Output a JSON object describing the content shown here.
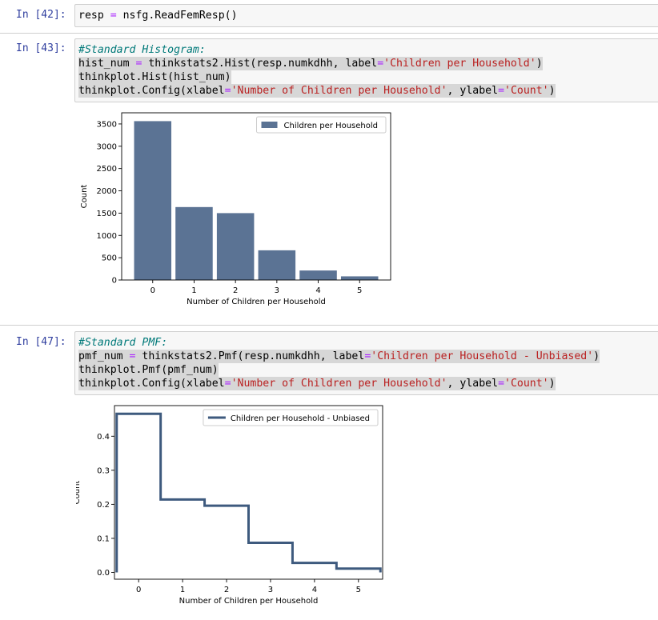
{
  "cells": [
    {
      "prompt": "In [42]:",
      "lines": [
        {
          "parts": [
            {
              "t": "resp ",
              "c": ""
            },
            {
              "t": "=",
              "c": "op"
            },
            {
              "t": " nsfg.ReadFemResp()",
              "c": ""
            }
          ]
        }
      ]
    },
    {
      "prompt": "In [43]:",
      "lines": [
        {
          "parts": [
            {
              "t": "#Standard Histogram:",
              "c": "kw-comment"
            }
          ]
        },
        {
          "parts": [
            {
              "t": "hist_num ",
              "c": ""
            },
            {
              "t": "=",
              "c": "op"
            },
            {
              "t": " thinkstats2.Hist(resp.numkdhh, label",
              "c": ""
            },
            {
              "t": "=",
              "c": "op"
            },
            {
              "t": "'Children per Household'",
              "c": "str"
            },
            {
              "t": ")",
              "c": ""
            }
          ]
        },
        {
          "parts": [
            {
              "t": "thinkplot.Hist(hist_num)",
              "c": ""
            }
          ]
        },
        {
          "parts": [
            {
              "t": "thinkplot.Config(xlabel",
              "c": ""
            },
            {
              "t": "=",
              "c": "op"
            },
            {
              "t": "'Number of Children per Household'",
              "c": "str"
            },
            {
              "t": ", ylabel",
              "c": ""
            },
            {
              "t": "=",
              "c": "op"
            },
            {
              "t": "'Count'",
              "c": "str"
            },
            {
              "t": ")",
              "c": ""
            }
          ]
        }
      ]
    },
    {
      "prompt": "In [47]:",
      "lines": [
        {
          "parts": [
            {
              "t": "#Standard PMF:",
              "c": "kw-comment"
            }
          ]
        },
        {
          "parts": [
            {
              "t": "pmf_num ",
              "c": ""
            },
            {
              "t": "=",
              "c": "op"
            },
            {
              "t": " thinkstats2.Pmf(resp.numkdhh, label",
              "c": ""
            },
            {
              "t": "=",
              "c": "op"
            },
            {
              "t": "'Children per Household - Unbiased'",
              "c": "str"
            },
            {
              "t": ")",
              "c": ""
            }
          ]
        },
        {
          "parts": [
            {
              "t": "thinkplot.Pmf(pmf_num)",
              "c": ""
            }
          ]
        },
        {
          "parts": [
            {
              "t": "thinkplot.Config(xlabel",
              "c": ""
            },
            {
              "t": "=",
              "c": "op"
            },
            {
              "t": "'Number of Children per Household'",
              "c": "str"
            },
            {
              "t": ", ylabel",
              "c": ""
            },
            {
              "t": "=",
              "c": "op"
            },
            {
              "t": "'Count'",
              "c": "str"
            },
            {
              "t": ")",
              "c": ""
            }
          ]
        }
      ]
    }
  ],
  "chart_data": [
    {
      "type": "bar",
      "categories": [
        "0",
        "1",
        "2",
        "3",
        "4",
        "5"
      ],
      "x": [
        0,
        1,
        2,
        3,
        4,
        5
      ],
      "series": [
        {
          "name": "Children per Household",
          "values": [
            3563,
            1636,
            1500,
            666,
            213,
            82
          ]
        }
      ],
      "xlabel": "Number of Children per Household",
      "ylabel": "Count",
      "ylim": [
        0,
        3750
      ],
      "xlim": [
        -0.75,
        5.75
      ],
      "yticks": [
        0,
        500,
        1000,
        1500,
        2000,
        2500,
        3000,
        3500
      ],
      "xticks": [
        0,
        1,
        2,
        3,
        4,
        5
      ],
      "legend": "upper right",
      "color": "#5b7394",
      "grid": false
    },
    {
      "type": "line",
      "step": true,
      "x": [
        0,
        1,
        2,
        3,
        4,
        5
      ],
      "series": [
        {
          "name": "Children per Household - Unbiased",
          "values": [
            0.466,
            0.214,
            0.196,
            0.087,
            0.028,
            0.011
          ]
        }
      ],
      "xlabel": "Number of Children per Household",
      "ylabel": "Count",
      "ylim": [
        -0.02,
        0.49
      ],
      "xlim": [
        -0.55,
        5.55
      ],
      "yticks": [
        0.0,
        0.1,
        0.2,
        0.3,
        0.4
      ],
      "ytick_labels": [
        "0.0",
        "0.1",
        "0.2",
        "0.3",
        "0.4"
      ],
      "xticks": [
        0,
        1,
        2,
        3,
        4,
        5
      ],
      "legend": "upper right",
      "color": "#3e5a7e",
      "grid": false
    }
  ]
}
